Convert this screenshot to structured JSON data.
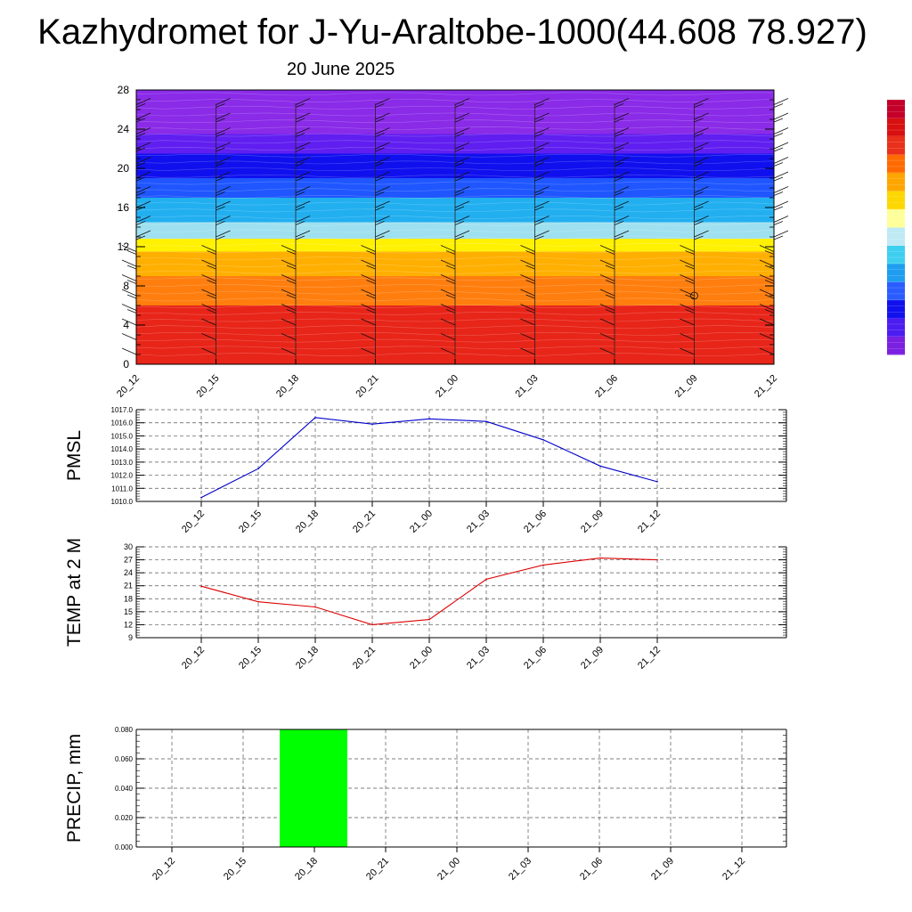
{
  "page": {
    "title": "Kazhydromet for J-Yu-Araltobe-1000(44.608 78.927)",
    "subtitle": "20 June 2025"
  },
  "chart_data": [
    {
      "type": "heatmap",
      "title": "",
      "xlabel": "",
      "ylabel": "",
      "x": [
        "20_12",
        "20_15",
        "20_18",
        "20_21",
        "21_00",
        "21_03",
        "21_06",
        "21_09",
        "21_12"
      ],
      "y_ticks": [
        "0",
        "4",
        "8",
        "12",
        "16",
        "20",
        "24",
        "28"
      ],
      "ylim": [
        0,
        28
      ],
      "color_bands": [
        {
          "from": 0,
          "to": 6,
          "color": "#e8261a"
        },
        {
          "from": 6,
          "to": 9,
          "color": "#ff7f0e"
        },
        {
          "from": 9,
          "to": 11.5,
          "color": "#ffb000"
        },
        {
          "from": 11.5,
          "to": 12.8,
          "color": "#fff200"
        },
        {
          "from": 12.8,
          "to": 14.5,
          "color": "#9fe0f0"
        },
        {
          "from": 14.5,
          "to": 17,
          "color": "#22b0f0"
        },
        {
          "from": 17,
          "to": 19,
          "color": "#2056ff"
        },
        {
          "from": 19,
          "to": 21.5,
          "color": "#1010ee"
        },
        {
          "from": 21.5,
          "to": 23.5,
          "color": "#6020f0"
        },
        {
          "from": 23.5,
          "to": 28,
          "color": "#8a2be8"
        }
      ],
      "colorbar": [
        "#7b1fe0",
        "#4d1cf0",
        "#1111ee",
        "#2a5cff",
        "#1f9ef0",
        "#3ecff0",
        "#bfe9f5",
        "#ffff99",
        "#ffd700",
        "#ffa500",
        "#ff6a00",
        "#e8301a",
        "#d81010",
        "#c4002a"
      ],
      "grid": false,
      "legend": "right"
    },
    {
      "type": "line",
      "title": "",
      "xlabel": "",
      "ylabel": "PMSL",
      "categories": [
        "20_12",
        "20_15",
        "20_18",
        "20_21",
        "21_00",
        "21_03",
        "21_06",
        "21_09",
        "21_12"
      ],
      "series": [
        {
          "values": [
            1010.3,
            1012.5,
            1016.4,
            1015.9,
            1016.3,
            1016.1,
            1014.7,
            1012.7,
            1011.5
          ],
          "color": "#0000cc"
        }
      ],
      "ylim": [
        1010.0,
        1017.0
      ],
      "y_ticks": [
        "1010.0",
        "1011.0",
        "1012.0",
        "1013.0",
        "1014.0",
        "1015.0",
        "1016.0",
        "1017.0"
      ],
      "grid": true
    },
    {
      "type": "line",
      "title": "",
      "xlabel": "",
      "ylabel": "TEMP at 2 M",
      "categories": [
        "20_12",
        "20_15",
        "20_18",
        "20_21",
        "21_00",
        "21_03",
        "21_06",
        "21_09",
        "21_12"
      ],
      "series": [
        {
          "values": [
            20.9,
            17.3,
            16.1,
            12.0,
            13.2,
            22.5,
            25.8,
            27.4,
            27.0
          ],
          "color": "#dd0000"
        }
      ],
      "ylim": [
        9,
        30
      ],
      "y_ticks": [
        "9",
        "12",
        "15",
        "18",
        "21",
        "24",
        "27",
        "30"
      ],
      "grid": true
    },
    {
      "type": "bar",
      "title": "",
      "xlabel": "",
      "ylabel": "PRECIP, mm",
      "categories": [
        "20_12",
        "20_15",
        "20_18",
        "20_21",
        "21_00",
        "21_03",
        "21_06",
        "21_09",
        "21_12"
      ],
      "series": [
        {
          "values": [
            0.0,
            0.0,
            0.08,
            0.0,
            0.0,
            0.0,
            0.0,
            0.0,
            0.0
          ],
          "color": "#00ff00"
        }
      ],
      "ylim": [
        0.0,
        0.08
      ],
      "y_ticks": [
        "0.000",
        "0.020",
        "0.040",
        "0.060",
        "0.080"
      ],
      "grid": true
    }
  ]
}
